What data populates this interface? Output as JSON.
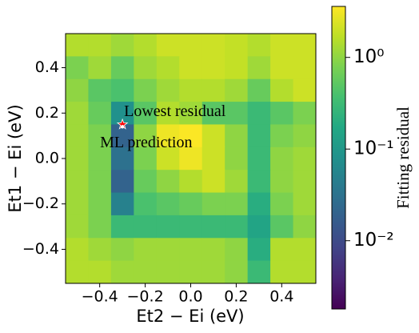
{
  "chart_data": {
    "type": "heatmap",
    "xlabel": "Et2 − Ei (eV)",
    "ylabel": "Et1 − Ei (eV)",
    "xlim": [
      -0.55,
      0.55
    ],
    "ylim": [
      -0.55,
      0.55
    ],
    "xticks": [
      {
        "value": -0.4,
        "label": "−0.4"
      },
      {
        "value": -0.2,
        "label": "−0.2"
      },
      {
        "value": 0,
        "label": "0.0"
      },
      {
        "value": 0.2,
        "label": "0.2"
      },
      {
        "value": 0.4,
        "label": "0.4"
      }
    ],
    "yticks": [
      {
        "value": -0.4,
        "label": "−0.4"
      },
      {
        "value": -0.2,
        "label": "−0.2"
      },
      {
        "value": 0,
        "label": "0.0"
      },
      {
        "value": 0.2,
        "label": "0.2"
      },
      {
        "value": 0.4,
        "label": "0.4"
      }
    ],
    "x": [
      -0.5,
      -0.4,
      -0.3,
      -0.2,
      -0.1,
      0,
      0.1,
      0.2,
      0.3,
      0.4,
      0.5
    ],
    "y": [
      0.5,
      0.4,
      0.3,
      0.2,
      0.1,
      0,
      -0.1,
      -0.2,
      -0.3,
      -0.4,
      -0.5
    ],
    "z": [
      [
        1.5,
        1.5,
        1.2,
        1.5,
        2,
        2,
        2,
        1.8,
        1.5,
        2,
        2
      ],
      [
        0.8,
        1.2,
        0.6,
        1.2,
        1.5,
        2,
        2,
        1.8,
        1.2,
        2,
        2
      ],
      [
        1,
        0.5,
        0.4,
        0.8,
        1.2,
        1.5,
        1.5,
        1.2,
        0.6,
        1.5,
        2
      ],
      [
        1.2,
        0.6,
        0.08,
        0.5,
        1.5,
        1.2,
        0.5,
        0.5,
        0.3,
        0.5,
        0.8
      ],
      [
        1.2,
        0.8,
        0.02,
        1,
        3,
        3.5,
        2,
        1,
        0.3,
        0.8,
        1
      ],
      [
        1.2,
        0.8,
        0.03,
        0.8,
        2,
        3,
        2,
        1,
        0.3,
        1,
        1.2
      ],
      [
        1.2,
        0.8,
        0.02,
        0.6,
        1,
        1.5,
        2,
        1.2,
        0.3,
        1,
        1.2
      ],
      [
        1.2,
        0.8,
        0.05,
        0.4,
        0.5,
        0.6,
        0.8,
        0.8,
        0.2,
        0.8,
        1.2
      ],
      [
        1.2,
        0.8,
        0.3,
        0.3,
        0.3,
        0.3,
        0.3,
        0.3,
        0.15,
        0.5,
        1
      ],
      [
        1.5,
        1.2,
        1,
        1.2,
        1.2,
        1.2,
        1.2,
        1,
        0.2,
        1.5,
        1.5
      ],
      [
        1.5,
        1.5,
        1.2,
        1.2,
        1.2,
        1.2,
        1.2,
        1,
        0.3,
        1.5,
        1.5
      ]
    ],
    "colorbar": {
      "label": "Fitting residual",
      "log": true,
      "lim": [
        0.0018,
        3.6
      ],
      "ticks": [
        {
          "value": 1,
          "label": "10⁰"
        },
        {
          "value": 0.1,
          "label": "10⁻¹"
        },
        {
          "value": 0.01,
          "label": "10⁻²"
        }
      ]
    },
    "points": [
      {
        "name": "Lowest residual",
        "x": -0.3,
        "y": 0.15,
        "color": "#ff0000",
        "marker": "star"
      },
      {
        "name": "ML prediction",
        "x": -0.3,
        "y": 0.14,
        "color": "#ffffff",
        "marker": "dot"
      }
    ]
  }
}
